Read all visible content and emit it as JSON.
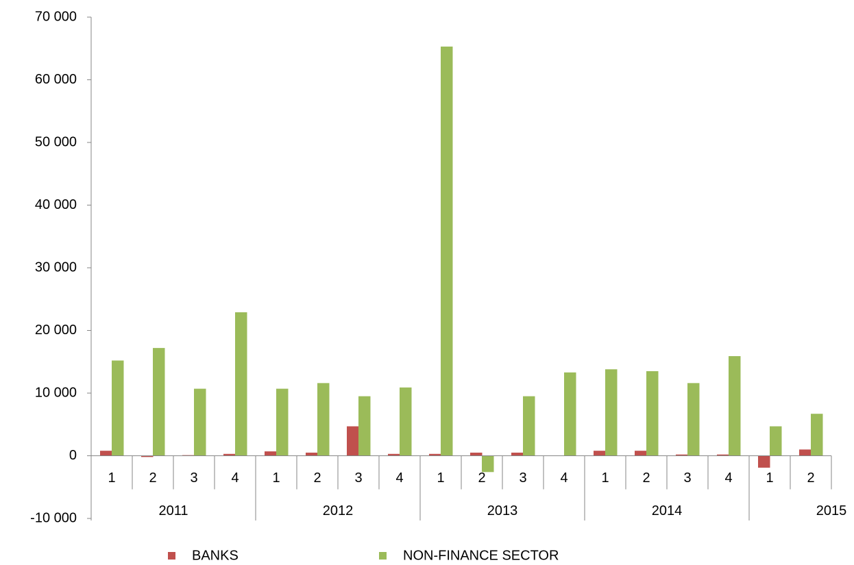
{
  "chart_data": {
    "type": "bar",
    "categories": [
      "1",
      "2",
      "3",
      "4",
      "1",
      "2",
      "3",
      "4",
      "1",
      "2",
      "3",
      "4",
      "1",
      "2",
      "3",
      "4",
      "1",
      "2"
    ],
    "category_years": [
      "2011",
      "2011",
      "2011",
      "2011",
      "2012",
      "2012",
      "2012",
      "2012",
      "2013",
      "2013",
      "2013",
      "2013",
      "2014",
      "2014",
      "2014",
      "2014",
      "2015",
      "2015"
    ],
    "series": [
      {
        "name": "BANKS",
        "color": "#c0504d",
        "values": [
          800,
          -200,
          100,
          300,
          700,
          500,
          4700,
          300,
          300,
          500,
          500,
          0,
          800,
          800,
          200,
          200,
          -1900,
          1000
        ]
      },
      {
        "name": "NON-FINANCE SECTOR",
        "color": "#9bbb59",
        "values": [
          15200,
          17200,
          10700,
          22900,
          10700,
          11600,
          9500,
          10900,
          65300,
          -2600,
          9500,
          13300,
          13800,
          13500,
          11600,
          15900,
          4700,
          6700
        ]
      }
    ],
    "ylim": [
      -10000,
      70000
    ],
    "yticks": [
      {
        "value": -10000,
        "label": "-10 000"
      },
      0,
      {
        "value": 10000,
        "label": "10 000"
      },
      {
        "value": 20000,
        "label": "20 000"
      },
      {
        "value": 30000,
        "label": "30 000"
      },
      {
        "value": 40000,
        "label": "40 000"
      },
      {
        "value": 50000,
        "label": "50 000"
      },
      {
        "value": 60000,
        "label": "60 000"
      },
      {
        "value": 70000,
        "label": "70 000"
      }
    ],
    "legend": "bottom"
  }
}
